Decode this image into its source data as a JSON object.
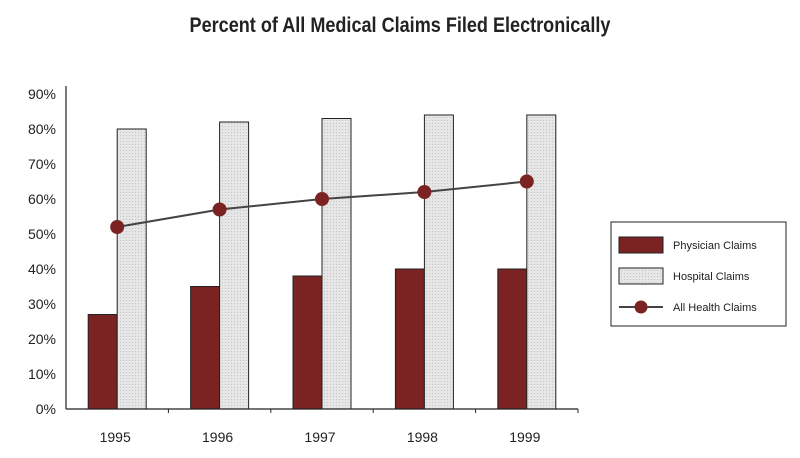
{
  "chart_data": {
    "type": "bar",
    "title": "Percent of All Medical Claims Filed Electronically",
    "xlabel": "",
    "ylabel": "",
    "categories": [
      "1995",
      "1996",
      "1997",
      "1998",
      "1999"
    ],
    "ylim": [
      0,
      90
    ],
    "y_ticks": [
      "0%",
      "10%",
      "20%",
      "30%",
      "40%",
      "50%",
      "60%",
      "70%",
      "80%",
      "90%"
    ],
    "series": [
      {
        "name": "Physician Claims",
        "kind": "bar",
        "color": "#7b2323",
        "values": [
          27,
          35,
          38,
          40,
          40
        ]
      },
      {
        "name": "Hospital Claims",
        "kind": "bar",
        "color": "#e2e2e2",
        "values": [
          80,
          82,
          83,
          84,
          84
        ]
      },
      {
        "name": "All Health Claims",
        "kind": "line",
        "color": "#7b2323",
        "values": [
          52,
          57,
          60,
          62,
          65
        ]
      }
    ],
    "grid": false,
    "legend_position": "right"
  }
}
